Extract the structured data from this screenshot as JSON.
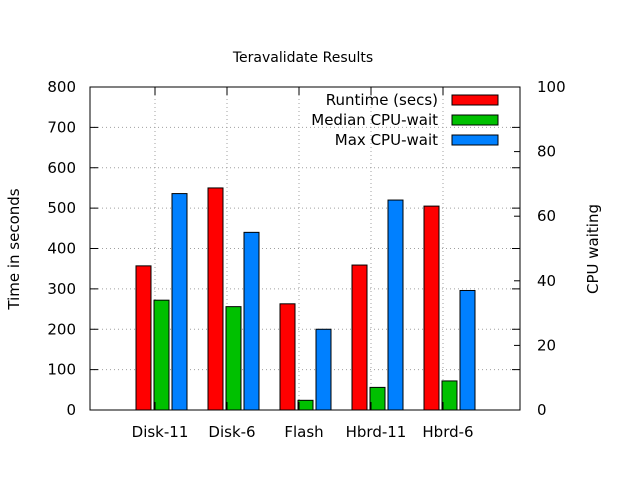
{
  "chart_data": {
    "type": "bar",
    "title": "Teravalidate Results",
    "xlabel": "",
    "ylabel": "Time in seconds",
    "y2label": "CPU waiting",
    "categories": [
      "Disk-11",
      "Disk-6",
      "Flash",
      "Hbrd-11",
      "Hbrd-6"
    ],
    "ylim": [
      0,
      800
    ],
    "y2lim": [
      0,
      100
    ],
    "yticks": [
      0,
      100,
      200,
      300,
      400,
      500,
      600,
      700,
      800
    ],
    "y2ticks": [
      0,
      20,
      40,
      60,
      80,
      100
    ],
    "grid": true,
    "legend_position": "top-right",
    "series": [
      {
        "name": "Runtime (secs)",
        "axis": "y",
        "color": "#ff0000",
        "values": [
          357,
          550,
          263,
          359,
          505
        ]
      },
      {
        "name": "Median CPU-wait",
        "axis": "y2",
        "color": "#00c000",
        "values": [
          34,
          32,
          3,
          7,
          9
        ]
      },
      {
        "name": "Max CPU-wait",
        "axis": "y2",
        "color": "#0080ff",
        "values": [
          67,
          55,
          25,
          65,
          37
        ]
      }
    ]
  }
}
